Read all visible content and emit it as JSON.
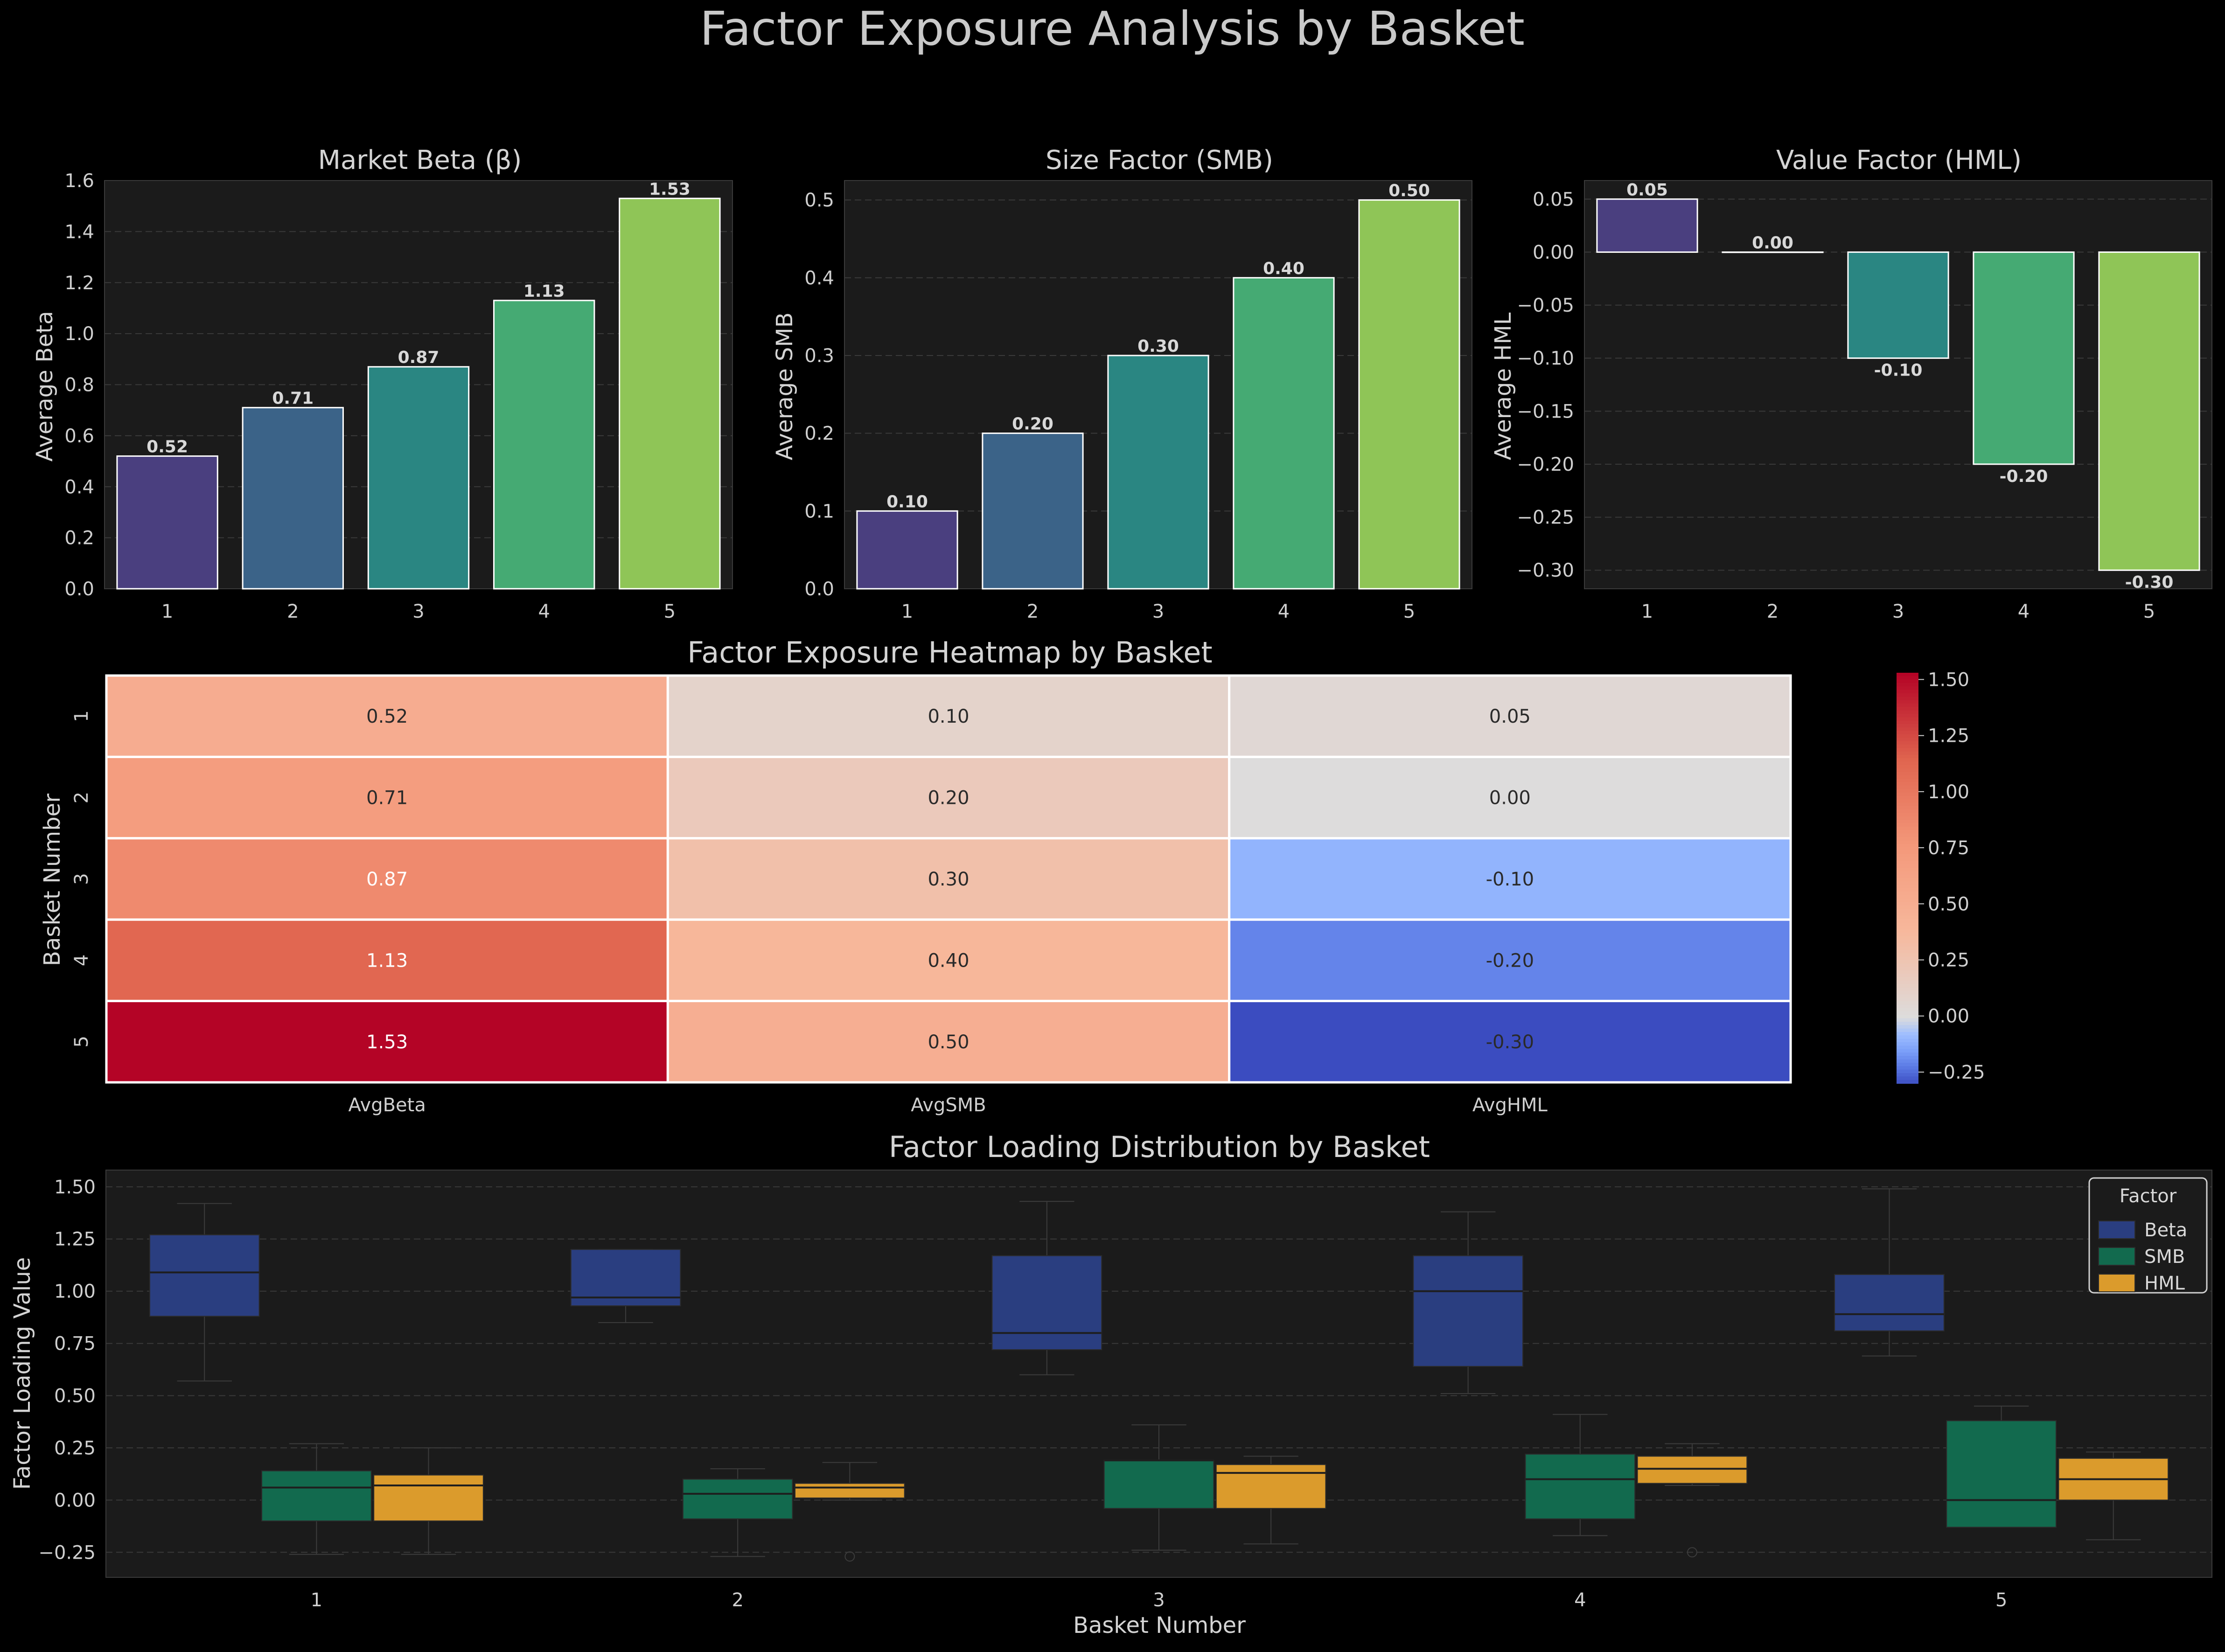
{
  "figure": {
    "title": "Factor Exposure Analysis by Basket"
  },
  "colors": {
    "background": "#000000",
    "axes_background": "#1b1b1b",
    "grid": "#3a3a3a",
    "text": "#d4d4d4",
    "viridis5": [
      "#4a3f7f",
      "#3b6388",
      "#2a8682",
      "#45aa73",
      "#8fc557"
    ],
    "box_beta": "#2a3e80",
    "box_smb": "#126a4e",
    "box_hml": "#db9b2c"
  },
  "chart_data": [
    {
      "type": "bar",
      "title": "Market Beta (β)",
      "xlabel": "",
      "ylabel": "Average Beta",
      "categories": [
        "1",
        "2",
        "3",
        "4",
        "5"
      ],
      "values": [
        0.52,
        0.71,
        0.87,
        1.13,
        1.53
      ],
      "value_labels": [
        "0.52",
        "0.71",
        "0.87",
        "1.13",
        "1.53"
      ],
      "ylim": [
        0,
        1.6
      ],
      "yticks": [
        0,
        0.2,
        0.4,
        0.6,
        0.8,
        1.0,
        1.2,
        1.4,
        1.6
      ],
      "ytick_labels": [
        "0.0",
        "0.2",
        "0.4",
        "0.6",
        "0.8",
        "1.0",
        "1.2",
        "1.4",
        "1.6"
      ],
      "grid": true
    },
    {
      "type": "bar",
      "title": "Size Factor (SMB)",
      "xlabel": "",
      "ylabel": "Average SMB",
      "categories": [
        "1",
        "2",
        "3",
        "4",
        "5"
      ],
      "values": [
        0.1,
        0.2,
        0.3,
        0.4,
        0.5
      ],
      "value_labels": [
        "0.10",
        "0.20",
        "0.30",
        "0.40",
        "0.50"
      ],
      "ylim": [
        0,
        0.525
      ],
      "yticks": [
        0,
        0.1,
        0.2,
        0.3,
        0.4,
        0.5
      ],
      "ytick_labels": [
        "0.0",
        "0.1",
        "0.2",
        "0.3",
        "0.4",
        "0.5"
      ],
      "grid": true
    },
    {
      "type": "bar",
      "title": "Value Factor (HML)",
      "xlabel": "",
      "ylabel": "Average HML",
      "categories": [
        "1",
        "2",
        "3",
        "4",
        "5"
      ],
      "values": [
        0.05,
        0.0,
        -0.1,
        -0.2,
        -0.3
      ],
      "value_labels": [
        "0.05",
        "0.00",
        "-0.10",
        "-0.20",
        "-0.30"
      ],
      "ylim": [
        -0.3175,
        0.0675
      ],
      "yticks": [
        0.05,
        0.0,
        -0.05,
        -0.1,
        -0.15,
        -0.2,
        -0.25,
        -0.3
      ],
      "ytick_labels": [
        "0.05",
        "0.00",
        "−0.05",
        "−0.10",
        "−0.15",
        "−0.20",
        "−0.25",
        "−0.30"
      ],
      "grid": true
    },
    {
      "type": "heatmap",
      "title": "Factor Exposure Heatmap by Basket",
      "xlabel": "",
      "ylabel": "Basket Number",
      "columns": [
        "AvgBeta",
        "AvgSMB",
        "AvgHML"
      ],
      "rows": [
        "1",
        "2",
        "3",
        "4",
        "5"
      ],
      "values": [
        [
          0.52,
          0.1,
          0.05
        ],
        [
          0.71,
          0.2,
          0.0
        ],
        [
          0.87,
          0.3,
          -0.1
        ],
        [
          1.13,
          0.4,
          -0.2
        ],
        [
          1.53,
          0.5,
          -0.3
        ]
      ],
      "cell_labels": [
        [
          "0.52",
          "0.10",
          "0.05"
        ],
        [
          "0.71",
          "0.20",
          "0.00"
        ],
        [
          "0.87",
          "0.30",
          "-0.10"
        ],
        [
          "1.13",
          "0.40",
          "-0.20"
        ],
        [
          "1.53",
          "0.50",
          "-0.30"
        ]
      ],
      "colormap": "coolwarm",
      "vmin": -0.3,
      "vmax": 1.53,
      "colorbar_ticks": [
        1.5,
        1.25,
        1.0,
        0.75,
        0.5,
        0.25,
        0.0,
        -0.25
      ],
      "colorbar_tick_labels": [
        "1.50",
        "1.25",
        "1.00",
        "0.75",
        "0.50",
        "0.25",
        "0.00",
        "−0.25"
      ]
    },
    {
      "type": "box",
      "title": "Factor Loading Distribution by Basket",
      "xlabel": "Basket Number",
      "ylabel": "Factor Loading Value",
      "categories": [
        "1",
        "2",
        "3",
        "4",
        "5"
      ],
      "ylim": [
        -0.37,
        1.58
      ],
      "yticks": [
        1.5,
        1.25,
        1.0,
        0.75,
        0.5,
        0.25,
        0.0,
        -0.25
      ],
      "ytick_labels": [
        "1.50",
        "1.25",
        "1.00",
        "0.75",
        "0.50",
        "0.25",
        "0.00",
        "−0.25"
      ],
      "legend": {
        "title": "Factor",
        "position": "top-right"
      },
      "grid": true,
      "series": [
        {
          "name": "Beta",
          "boxes": [
            {
              "whislo": 0.57,
              "q1": 0.88,
              "med": 1.09,
              "q3": 1.27,
              "whishi": 1.42,
              "fliers": []
            },
            {
              "whislo": 0.85,
              "q1": 0.93,
              "med": 0.97,
              "q3": 1.2,
              "whishi": 1.2,
              "fliers": []
            },
            {
              "whislo": 0.6,
              "q1": 0.72,
              "med": 0.8,
              "q3": 1.17,
              "whishi": 1.43,
              "fliers": []
            },
            {
              "whislo": 0.51,
              "q1": 0.64,
              "med": 1.0,
              "q3": 1.17,
              "whishi": 1.38,
              "fliers": []
            },
            {
              "whislo": 0.69,
              "q1": 0.81,
              "med": 0.89,
              "q3": 1.08,
              "whishi": 1.49,
              "fliers": []
            }
          ]
        },
        {
          "name": "SMB",
          "boxes": [
            {
              "whislo": -0.26,
              "q1": -0.1,
              "med": 0.06,
              "q3": 0.14,
              "whishi": 0.27,
              "fliers": []
            },
            {
              "whislo": -0.27,
              "q1": -0.09,
              "med": 0.03,
              "q3": 0.1,
              "whishi": 0.15,
              "fliers": []
            },
            {
              "whislo": -0.24,
              "q1": -0.04,
              "med": 0.19,
              "q3": 0.19,
              "whishi": 0.36,
              "fliers": []
            },
            {
              "whislo": -0.17,
              "q1": -0.09,
              "med": 0.1,
              "q3": 0.22,
              "whishi": 0.41,
              "fliers": []
            },
            {
              "whislo": -0.13,
              "q1": -0.13,
              "med": 0.0,
              "q3": 0.38,
              "whishi": 0.45,
              "fliers": []
            }
          ]
        },
        {
          "name": "HML",
          "boxes": [
            {
              "whislo": -0.26,
              "q1": -0.1,
              "med": 0.07,
              "q3": 0.12,
              "whishi": 0.25,
              "fliers": []
            },
            {
              "whislo": 0.0,
              "q1": 0.01,
              "med": 0.06,
              "q3": 0.08,
              "whishi": 0.18,
              "fliers": [
                -0.27
              ]
            },
            {
              "whislo": -0.21,
              "q1": -0.04,
              "med": 0.13,
              "q3": 0.17,
              "whishi": 0.21,
              "fliers": []
            },
            {
              "whislo": 0.07,
              "q1": 0.08,
              "med": 0.15,
              "q3": 0.21,
              "whishi": 0.27,
              "fliers": [
                -0.25
              ]
            },
            {
              "whislo": -0.19,
              "q1": 0.0,
              "med": 0.1,
              "q3": 0.2,
              "whishi": 0.23,
              "fliers": []
            }
          ]
        }
      ]
    }
  ]
}
